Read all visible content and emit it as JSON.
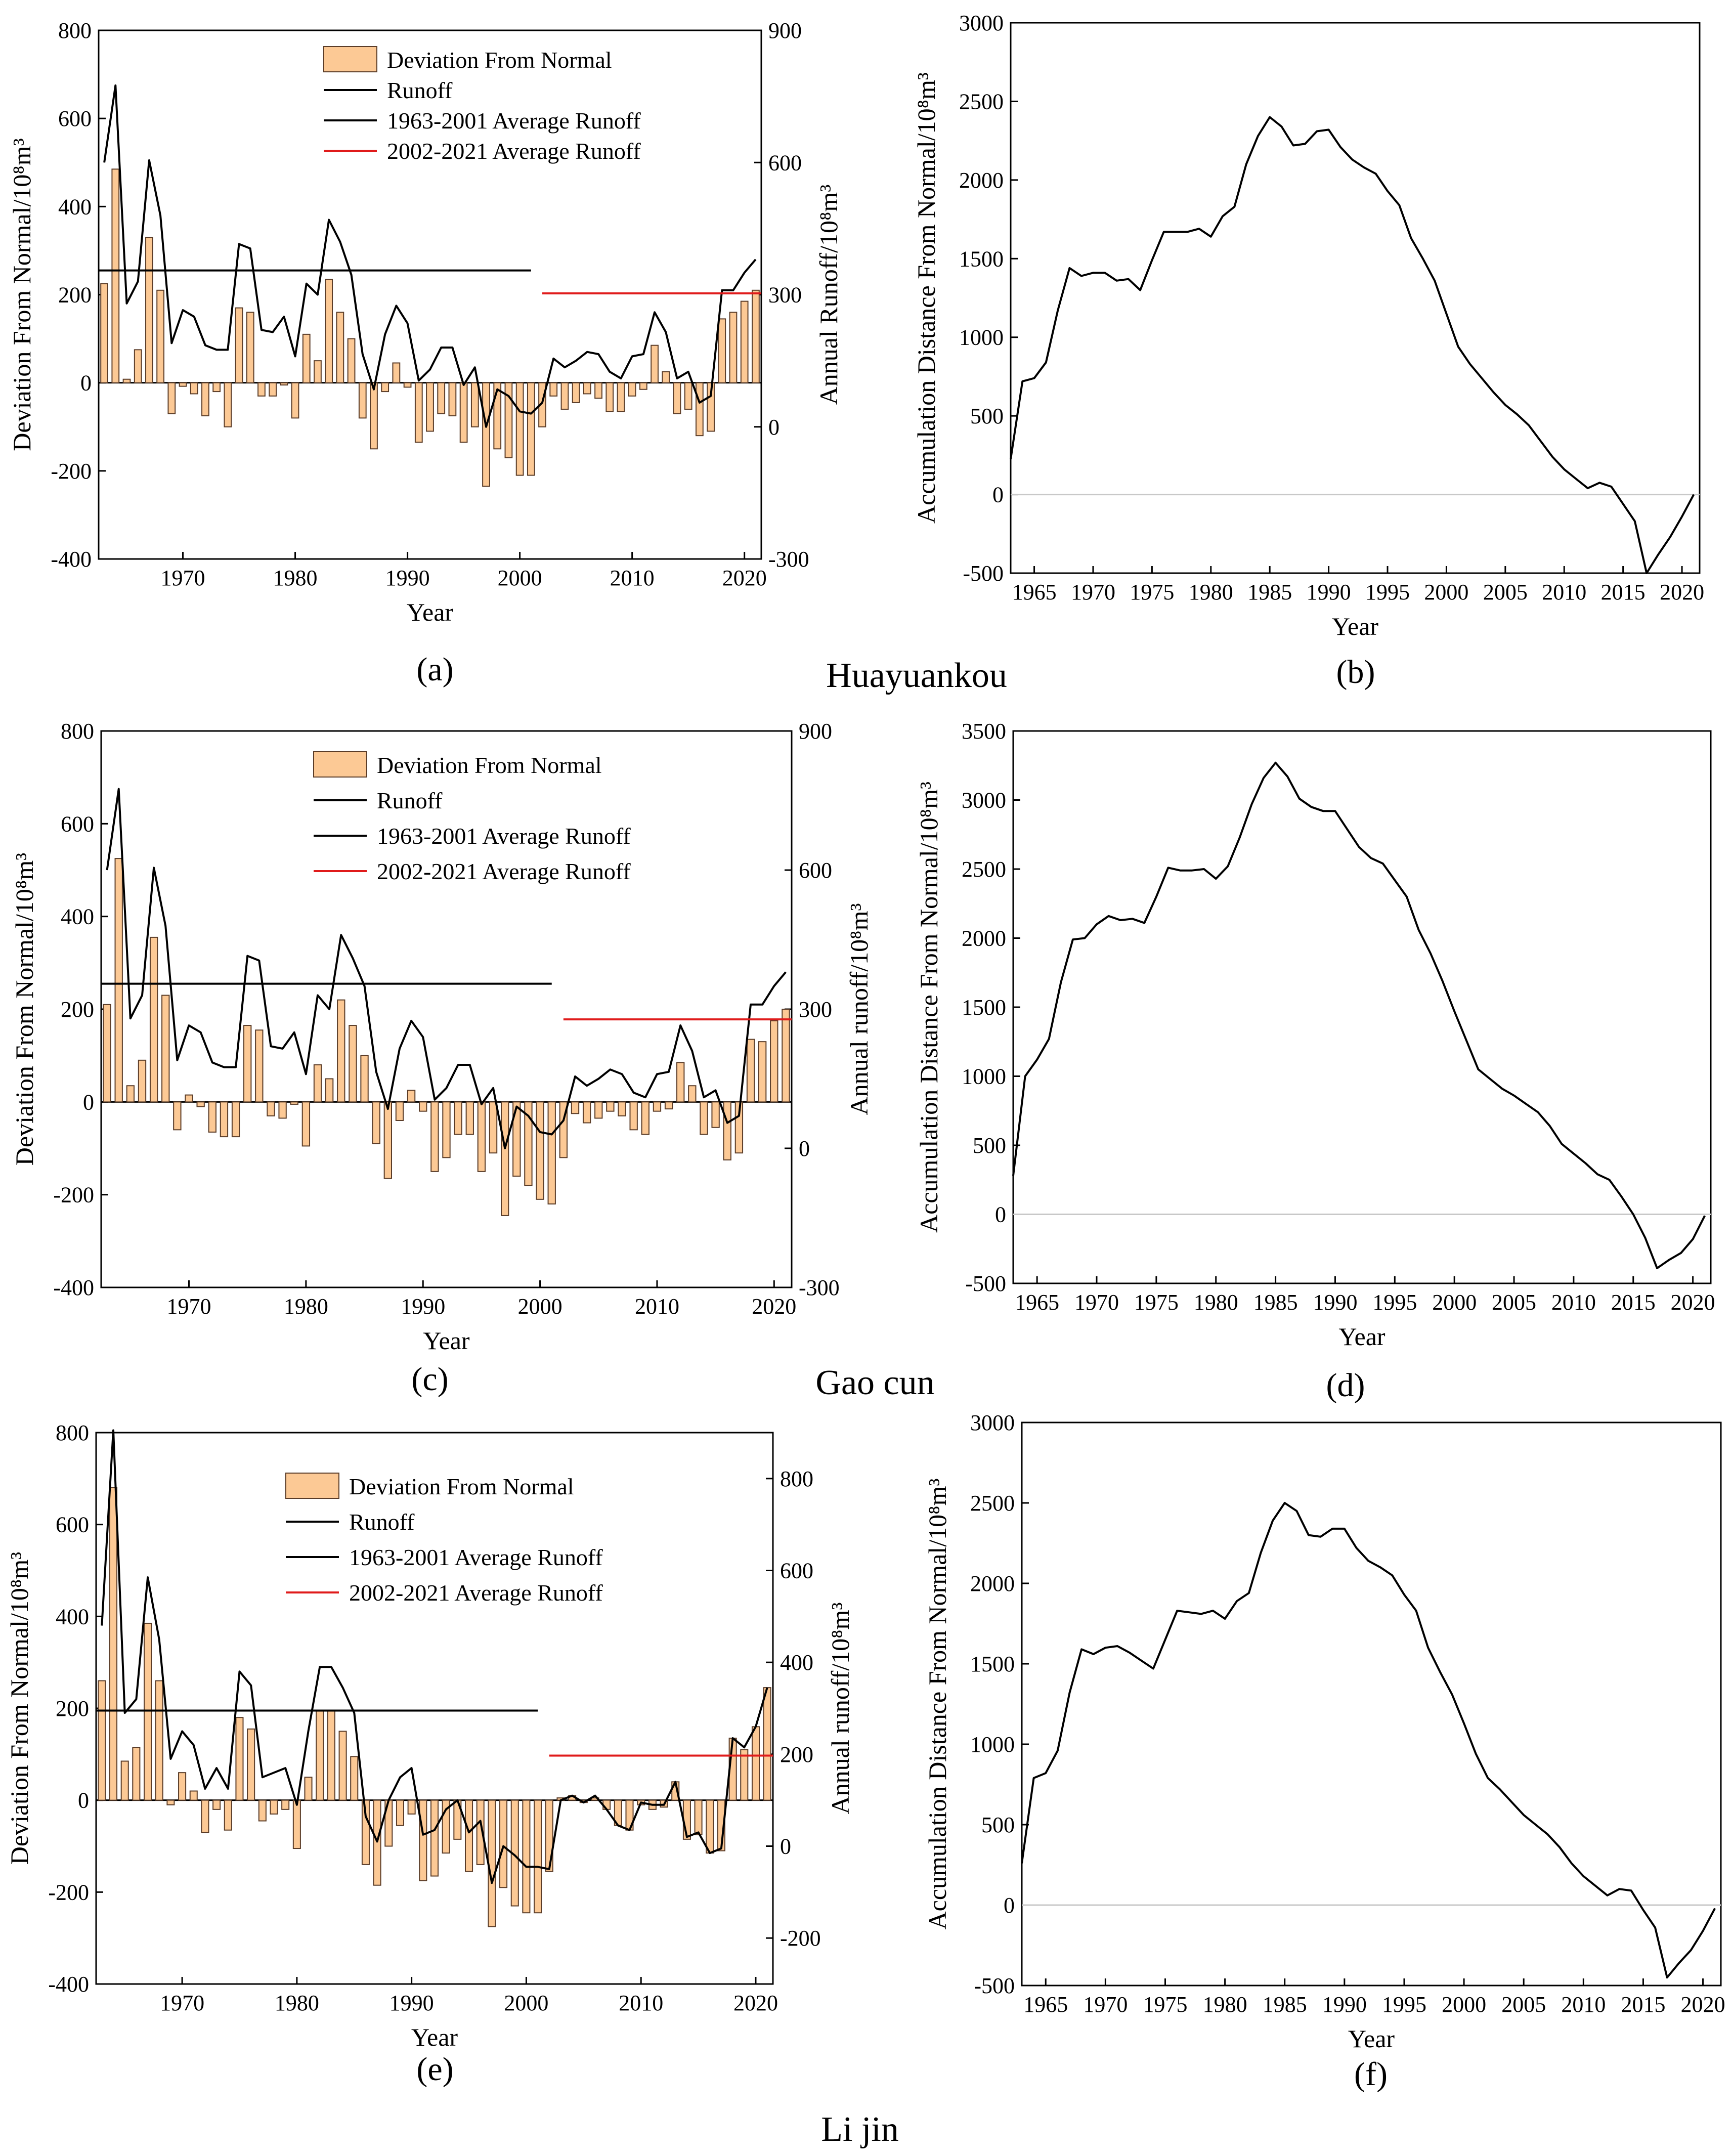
{
  "colors": {
    "bar": "#fcc995",
    "bar_edge": "#5a3c28",
    "line": "#000000",
    "red": "#e01b1b",
    "zero": "#c8c8c8"
  },
  "stations": [
    "Huayuankou",
    "Gao cun",
    "Li jin"
  ],
  "chart_data": [
    {
      "id": "a",
      "panel_label": "(a)",
      "type": "bar",
      "title": "",
      "xlabel": "Year",
      "ylabel": "Deviation From Normal/10⁸m³",
      "y2label": "Annual Runoff/10⁸m³",
      "xlim": [
        1962.5,
        2021.5
      ],
      "ylim": [
        -400,
        800
      ],
      "y2lim": [
        -300,
        900
      ],
      "xticks": [
        1970,
        1980,
        1990,
        2000,
        2010,
        2020
      ],
      "yticks": [
        -400,
        -200,
        0,
        200,
        400,
        600,
        800
      ],
      "y2ticks": [
        -300,
        0,
        300,
        600,
        900
      ],
      "legend": [
        "Deviation From Normal",
        "Runoff",
        "1963-2001 Average Runoff",
        "2002-2021 Average Runoff"
      ],
      "years": [
        1963,
        1964,
        1965,
        1966,
        1967,
        1968,
        1969,
        1970,
        1971,
        1972,
        1973,
        1974,
        1975,
        1976,
        1977,
        1978,
        1979,
        1980,
        1981,
        1982,
        1983,
        1984,
        1985,
        1986,
        1987,
        1988,
        1989,
        1990,
        1991,
        1992,
        1993,
        1994,
        1995,
        1996,
        1997,
        1998,
        1999,
        2000,
        2001,
        2002,
        2003,
        2004,
        2005,
        2006,
        2007,
        2008,
        2009,
        2010,
        2011,
        2012,
        2013,
        2014,
        2015,
        2016,
        2017,
        2018,
        2019,
        2020,
        2021
      ],
      "deviation": [
        225,
        485,
        8,
        75,
        330,
        210,
        -70,
        -8,
        -25,
        -75,
        -20,
        -100,
        170,
        160,
        -30,
        -30,
        -5,
        -80,
        110,
        50,
        235,
        160,
        100,
        -80,
        -150,
        -20,
        45,
        -10,
        -135,
        -110,
        -70,
        -75,
        -135,
        -100,
        -235,
        -150,
        -170,
        -210,
        -210,
        -100,
        -30,
        -60,
        -45,
        -25,
        -35,
        -65,
        -65,
        -30,
        -15,
        85,
        25,
        -70,
        -60,
        -120,
        -110,
        145,
        160,
        185,
        210
      ],
      "runoff": [
        600,
        775,
        280,
        330,
        605,
        480,
        190,
        265,
        250,
        185,
        175,
        175,
        415,
        405,
        220,
        215,
        250,
        160,
        325,
        300,
        470,
        420,
        345,
        165,
        85,
        210,
        275,
        235,
        105,
        130,
        180,
        180,
        95,
        135,
        0,
        85,
        70,
        35,
        30,
        55,
        155,
        135,
        150,
        170,
        165,
        125,
        110,
        160,
        165,
        260,
        215,
        110,
        125,
        55,
        70,
        310,
        310,
        350,
        380
      ],
      "avg1": {
        "from": 1962.5,
        "to": 2001,
        "value": 355
      },
      "avg2": {
        "from": 2002,
        "to": 2021.5,
        "value": 303
      }
    },
    {
      "id": "b",
      "panel_label": "(b)",
      "type": "line",
      "xlabel": "Year",
      "ylabel": "Accumulation Distance From Normal/10⁸m³",
      "xlim": [
        1963,
        2021.5
      ],
      "ylim": [
        -500,
        3000
      ],
      "xticks": [
        1965,
        1970,
        1975,
        1980,
        1985,
        1990,
        1995,
        2000,
        2005,
        2010,
        2015,
        2020
      ],
      "yticks": [
        -500,
        0,
        500,
        1000,
        1500,
        2000,
        2500,
        3000
      ],
      "years": [
        1963,
        1964,
        1965,
        1966,
        1967,
        1968,
        1969,
        1970,
        1971,
        1972,
        1973,
        1974,
        1975,
        1976,
        1977,
        1978,
        1979,
        1980,
        1981,
        1982,
        1983,
        1984,
        1985,
        1986,
        1987,
        1988,
        1989,
        1990,
        1991,
        1992,
        1993,
        1994,
        1995,
        1996,
        1997,
        1998,
        1999,
        2000,
        2001,
        2002,
        2003,
        2004,
        2005,
        2006,
        2007,
        2008,
        2009,
        2010,
        2011,
        2012,
        2013,
        2014,
        2015,
        2016,
        2017,
        2018,
        2019,
        2020,
        2021
      ],
      "values": [
        225,
        720,
        740,
        840,
        1170,
        1440,
        1390,
        1410,
        1410,
        1360,
        1370,
        1300,
        1490,
        1670,
        1670,
        1670,
        1690,
        1640,
        1770,
        1830,
        2100,
        2280,
        2400,
        2340,
        2220,
        2230,
        2310,
        2320,
        2210,
        2130,
        2080,
        2040,
        1930,
        1840,
        1630,
        1500,
        1360,
        1150,
        940,
        830,
        740,
        650,
        570,
        510,
        440,
        340,
        240,
        160,
        100,
        40,
        75,
        50,
        -60,
        -170,
        -500,
        -380,
        -270,
        -140,
        0
      ]
    },
    {
      "id": "c",
      "panel_label": "(c)",
      "type": "bar",
      "xlabel": "Year",
      "ylabel": "Deviation From Normal/10⁸m³",
      "y2label": "Annual runoff/10⁸m³",
      "xlim": [
        1962.5,
        2021.5
      ],
      "ylim": [
        -400,
        800
      ],
      "y2lim": [
        -300,
        900
      ],
      "xticks": [
        1970,
        1980,
        1990,
        2000,
        2010,
        2020
      ],
      "yticks": [
        -400,
        -200,
        0,
        200,
        400,
        600,
        800
      ],
      "y2ticks": [
        -300,
        0,
        300,
        600,
        900
      ],
      "legend": [
        "Deviation From Normal",
        "Runoff",
        "1963-2001 Average Runoff",
        "2002-2021 Average Runoff"
      ],
      "years": [
        1963,
        1964,
        1965,
        1966,
        1967,
        1968,
        1969,
        1970,
        1971,
        1972,
        1973,
        1974,
        1975,
        1976,
        1977,
        1978,
        1979,
        1980,
        1981,
        1982,
        1983,
        1984,
        1985,
        1986,
        1987,
        1988,
        1989,
        1990,
        1991,
        1992,
        1993,
        1994,
        1995,
        1996,
        1997,
        1998,
        1999,
        2000,
        2001,
        2002,
        2003,
        2004,
        2005,
        2006,
        2007,
        2008,
        2009,
        2010,
        2011,
        2012,
        2013,
        2014,
        2015,
        2016,
        2017,
        2018,
        2019,
        2020,
        2021
      ],
      "deviation": [
        210,
        525,
        35,
        90,
        355,
        230,
        -60,
        15,
        -10,
        -65,
        -75,
        -75,
        165,
        155,
        -30,
        -35,
        -5,
        -95,
        80,
        50,
        220,
        165,
        100,
        -90,
        -165,
        -40,
        25,
        -20,
        -150,
        -120,
        -70,
        -70,
        -150,
        -110,
        -245,
        -160,
        -180,
        -210,
        -220,
        -120,
        -25,
        -45,
        -35,
        -20,
        -30,
        -60,
        -70,
        -20,
        -15,
        85,
        35,
        -70,
        -55,
        -125,
        -110,
        135,
        130,
        175,
        200
      ],
      "runoff": [
        600,
        775,
        280,
        330,
        605,
        480,
        190,
        265,
        250,
        185,
        175,
        175,
        415,
        405,
        220,
        215,
        250,
        160,
        330,
        300,
        460,
        410,
        350,
        165,
        85,
        215,
        275,
        240,
        105,
        130,
        180,
        180,
        95,
        130,
        0,
        90,
        70,
        35,
        30,
        60,
        155,
        135,
        150,
        170,
        160,
        120,
        110,
        160,
        165,
        265,
        210,
        110,
        125,
        55,
        70,
        310,
        310,
        350,
        380
      ],
      "avg1": {
        "from": 1962.5,
        "to": 2001,
        "value": 355
      },
      "avg2": {
        "from": 2002,
        "to": 2021.5,
        "value": 278
      }
    },
    {
      "id": "d",
      "panel_label": "(d)",
      "type": "line",
      "xlabel": "Year",
      "ylabel": "Accumulation Distance From Normal/10⁸m³",
      "xlim": [
        1963,
        2021.5
      ],
      "ylim": [
        -500,
        3500
      ],
      "xticks": [
        1965,
        1970,
        1975,
        1980,
        1985,
        1990,
        1995,
        2000,
        2005,
        2010,
        2015,
        2020
      ],
      "yticks": [
        -500,
        0,
        500,
        1000,
        1500,
        2000,
        2500,
        3000,
        3500
      ],
      "years": [
        1963,
        1964,
        1965,
        1966,
        1967,
        1968,
        1969,
        1970,
        1971,
        1972,
        1973,
        1974,
        1975,
        1976,
        1977,
        1978,
        1979,
        1980,
        1981,
        1982,
        1983,
        1984,
        1985,
        1986,
        1987,
        1988,
        1989,
        1990,
        1991,
        1992,
        1993,
        1994,
        1995,
        1996,
        1997,
        1998,
        1999,
        2000,
        2001,
        2002,
        2003,
        2004,
        2005,
        2006,
        2007,
        2008,
        2009,
        2010,
        2011,
        2012,
        2013,
        2014,
        2015,
        2016,
        2017,
        2018,
        2019,
        2020,
        2021
      ],
      "values": [
        280,
        1000,
        1120,
        1270,
        1680,
        1990,
        2000,
        2100,
        2160,
        2130,
        2140,
        2110,
        2300,
        2510,
        2490,
        2490,
        2500,
        2430,
        2520,
        2730,
        2970,
        3160,
        3270,
        3170,
        3010,
        2950,
        2920,
        2920,
        2790,
        2660,
        2580,
        2540,
        2420,
        2300,
        2060,
        1890,
        1690,
        1470,
        1260,
        1050,
        980,
        910,
        860,
        800,
        740,
        640,
        510,
        440,
        370,
        290,
        250,
        130,
        0,
        -170,
        -390,
        -330,
        -280,
        -180,
        -10
      ]
    },
    {
      "id": "e",
      "panel_label": "(e)",
      "type": "bar",
      "xlabel": "Year",
      "ylabel": "Deviation From Normal/10⁸m³",
      "y2label": "Annual runoff/10⁸m³",
      "xlim": [
        1962.5,
        2021.5
      ],
      "ylim": [
        -400,
        800
      ],
      "y2lim": [
        -300,
        900
      ],
      "xticks": [
        1970,
        1980,
        1990,
        2000,
        2010,
        2020
      ],
      "yticks": [
        -400,
        -200,
        0,
        200,
        400,
        600,
        800
      ],
      "y2ticks": [
        -200,
        0,
        200,
        400,
        600,
        800
      ],
      "legend": [
        "Deviation From Normal",
        "Runoff",
        "1963-2001 Average Runoff",
        "2002-2021 Average Runoff"
      ],
      "years": [
        1963,
        1964,
        1965,
        1966,
        1967,
        1968,
        1969,
        1970,
        1971,
        1972,
        1973,
        1974,
        1975,
        1976,
        1977,
        1978,
        1979,
        1980,
        1981,
        1982,
        1983,
        1984,
        1985,
        1986,
        1987,
        1988,
        1989,
        1990,
        1991,
        1992,
        1993,
        1994,
        1995,
        1996,
        1997,
        1998,
        1999,
        2000,
        2001,
        2002,
        2003,
        2004,
        2005,
        2006,
        2007,
        2008,
        2009,
        2010,
        2011,
        2012,
        2013,
        2014,
        2015,
        2016,
        2017,
        2018,
        2019,
        2020,
        2021
      ],
      "deviation": [
        260,
        680,
        85,
        115,
        385,
        260,
        -10,
        60,
        20,
        -70,
        -20,
        -65,
        180,
        155,
        -45,
        -30,
        -20,
        -105,
        50,
        195,
        195,
        150,
        95,
        -140,
        -185,
        -100,
        -55,
        -30,
        -175,
        -165,
        -115,
        -85,
        -155,
        -140,
        -275,
        -190,
        -230,
        -245,
        -245,
        -155,
        5,
        10,
        -5,
        5,
        -20,
        -55,
        -65,
        -10,
        -20,
        -15,
        40,
        -85,
        -75,
        -115,
        -110,
        135,
        110,
        160,
        245
      ],
      "runoff": [
        480,
        905,
        290,
        320,
        585,
        450,
        190,
        250,
        220,
        125,
        170,
        125,
        380,
        350,
        150,
        160,
        170,
        90,
        250,
        390,
        390,
        345,
        290,
        65,
        10,
        100,
        150,
        170,
        25,
        35,
        80,
        100,
        30,
        55,
        -80,
        0,
        -20,
        -45,
        -45,
        -50,
        100,
        110,
        95,
        110,
        80,
        45,
        35,
        95,
        90,
        90,
        140,
        20,
        30,
        -15,
        -5,
        235,
        215,
        260,
        345
      ],
      "avg1": {
        "from": 1962.5,
        "to": 2001,
        "value": 295
      },
      "avg2": {
        "from": 2002,
        "to": 2021.5,
        "value": 197
      }
    },
    {
      "id": "f",
      "panel_label": "(f)",
      "type": "line",
      "xlabel": "Year",
      "ylabel": "Accumulation Distance From Normal/10⁸m³",
      "xlim": [
        1963,
        2021.5
      ],
      "ylim": [
        -500,
        3000
      ],
      "xticks": [
        1965,
        1970,
        1975,
        1980,
        1985,
        1990,
        1995,
        2000,
        2005,
        2010,
        2015,
        2020
      ],
      "yticks": [
        -500,
        0,
        500,
        1000,
        1500,
        2000,
        2500,
        3000
      ],
      "years": [
        1963,
        1964,
        1965,
        1966,
        1967,
        1968,
        1969,
        1970,
        1971,
        1972,
        1973,
        1974,
        1975,
        1976,
        1977,
        1978,
        1979,
        1980,
        1981,
        1982,
        1983,
        1984,
        1985,
        1986,
        1987,
        1988,
        1989,
        1990,
        1991,
        1992,
        1993,
        1994,
        1995,
        1996,
        1997,
        1998,
        1999,
        2000,
        2001,
        2002,
        2003,
        2004,
        2005,
        2006,
        2007,
        2008,
        2009,
        2010,
        2011,
        2012,
        2013,
        2014,
        2015,
        2016,
        2017,
        2018,
        2019,
        2020,
        2021
      ],
      "values": [
        260,
        790,
        820,
        960,
        1320,
        1590,
        1560,
        1600,
        1610,
        1570,
        1520,
        1470,
        1650,
        1830,
        1820,
        1810,
        1830,
        1780,
        1890,
        1940,
        2190,
        2390,
        2500,
        2450,
        2300,
        2290,
        2340,
        2340,
        2220,
        2140,
        2100,
        2050,
        1930,
        1830,
        1600,
        1450,
        1310,
        1130,
        940,
        790,
        720,
        640,
        560,
        500,
        440,
        360,
        260,
        180,
        120,
        60,
        100,
        90,
        -30,
        -140,
        -450,
        -360,
        -280,
        -160,
        -20
      ]
    }
  ]
}
